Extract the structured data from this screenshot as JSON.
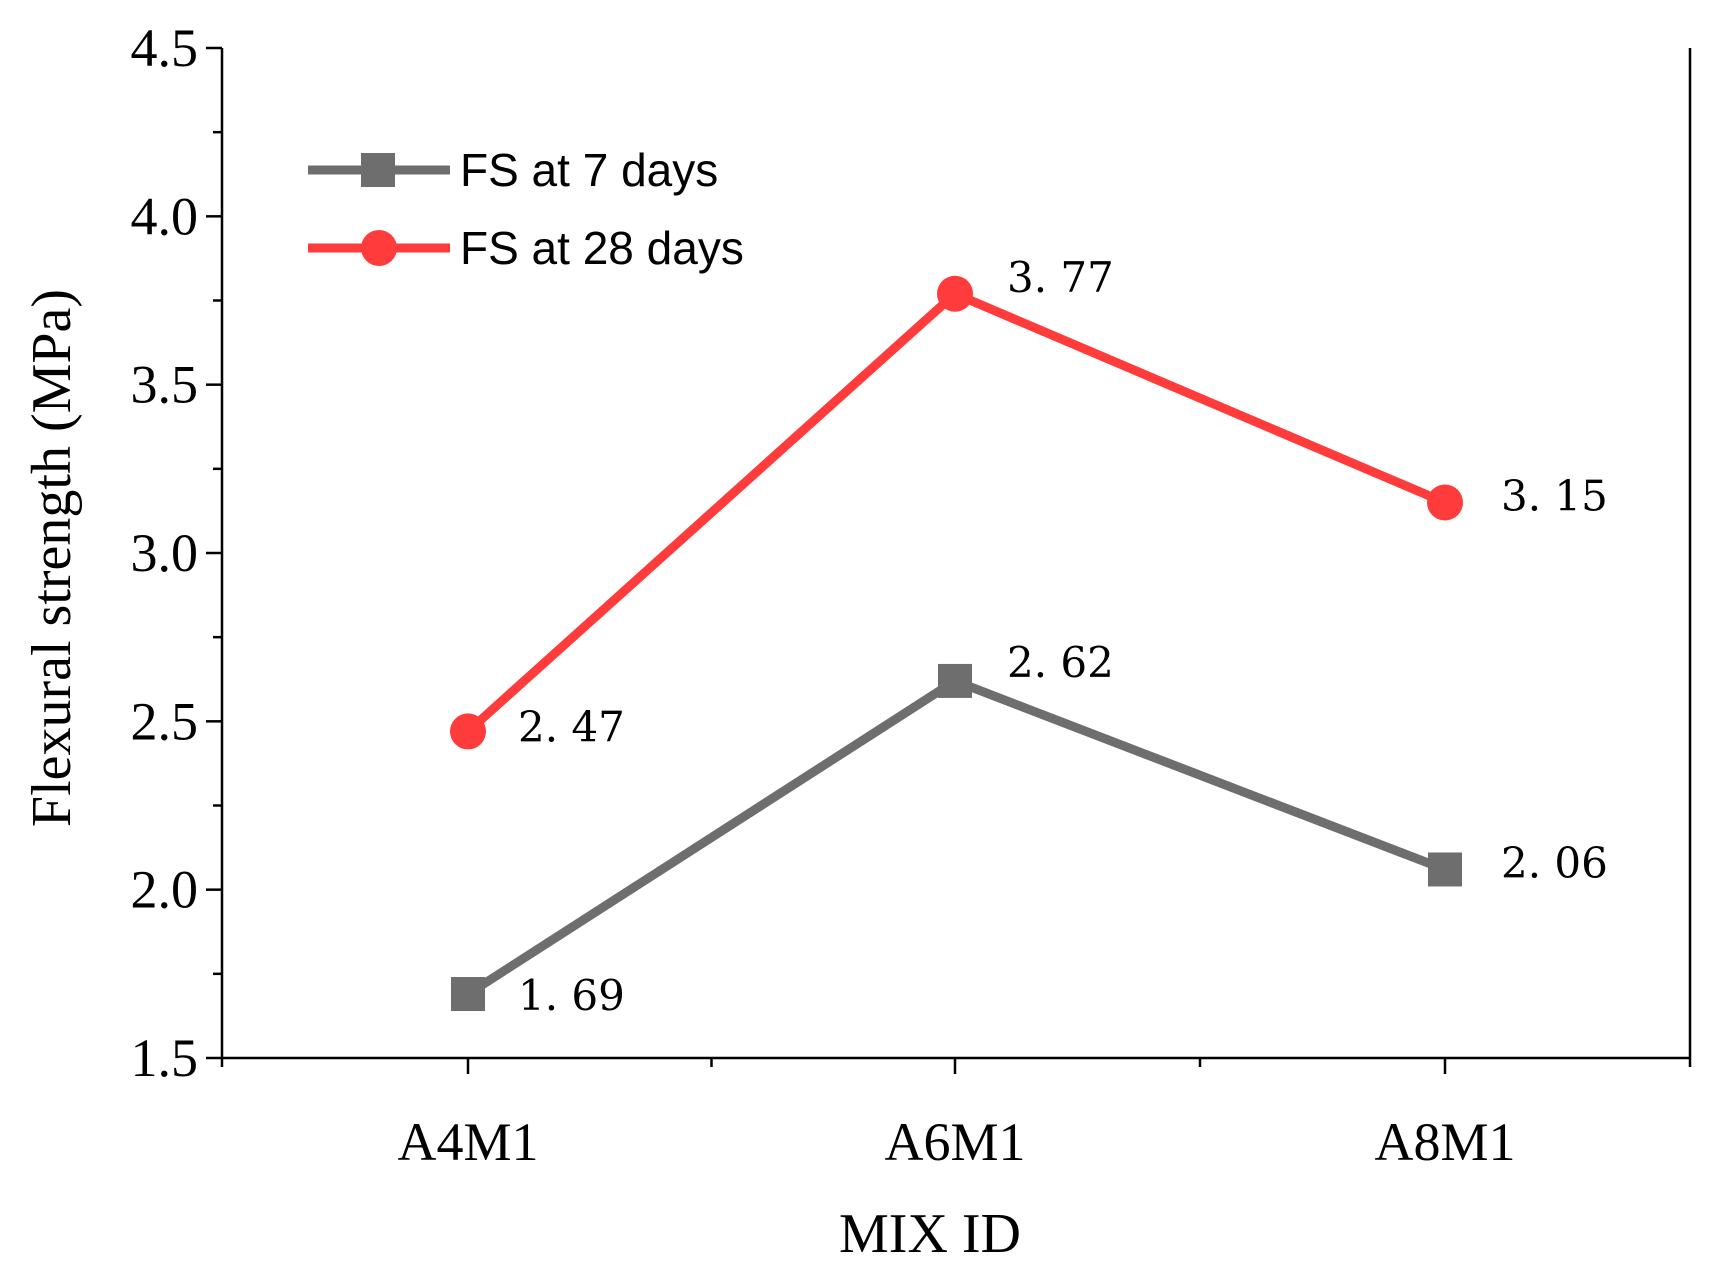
{
  "chart_data": {
    "type": "line",
    "title": "",
    "xlabel": "MIX ID",
    "ylabel": "Flexural strength (MPa)",
    "categories": [
      "A4M1",
      "A6M1",
      "A8M1"
    ],
    "ylim": [
      1.5,
      4.5
    ],
    "yticks": [
      "1.5",
      "2.0",
      "2.5",
      "3.0",
      "3.5",
      "4.0",
      "4.5"
    ],
    "grid": false,
    "legend_position": "top-left",
    "series": [
      {
        "name": "FS at 7 days",
        "values": [
          1.69,
          2.62,
          2.06
        ],
        "labels": [
          "1. 69",
          "2. 62",
          "2. 06"
        ],
        "color": "#6e6e6e",
        "marker": "square"
      },
      {
        "name": "FS at 28 days",
        "values": [
          2.47,
          3.77,
          3.15
        ],
        "labels": [
          "2. 47",
          "3. 77",
          "3. 15"
        ],
        "color": "#ff3b3b",
        "marker": "circle"
      }
    ]
  }
}
